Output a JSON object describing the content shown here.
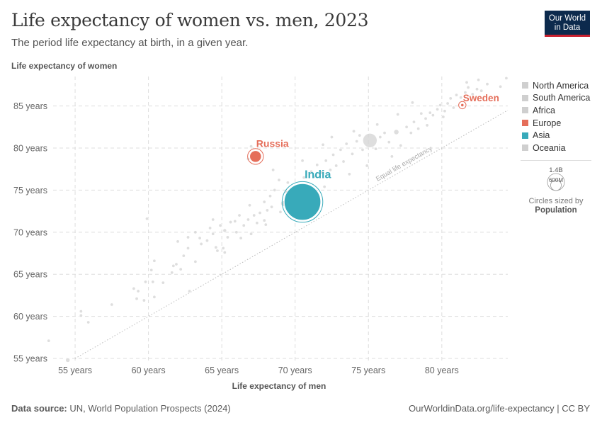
{
  "header": {
    "title": "Life expectancy of women vs. men, 2023",
    "subtitle": "The period life expectancy at birth, in a given year.",
    "logo_line1": "Our World",
    "logo_line2": "in Data"
  },
  "footer": {
    "source_label": "Data source:",
    "source_text": "UN, World Population Prospects (2024)",
    "url": "OurWorldinData.org/life-expectancy | CC BY"
  },
  "legend": {
    "items": [
      {
        "label": "North America",
        "color": "#cfcfcf"
      },
      {
        "label": "South America",
        "color": "#cfcfcf"
      },
      {
        "label": "Africa",
        "color": "#cfcfcf"
      },
      {
        "label": "Europe",
        "color": "#e56e5a"
      },
      {
        "label": "Asia",
        "color": "#38aaba"
      },
      {
        "label": "Oceania",
        "color": "#cfcfcf"
      }
    ],
    "size_key_max": "1.4B",
    "size_key_min": "600M",
    "size_caption": "Circles sized by",
    "size_variable": "Population"
  },
  "chart_data": {
    "type": "scatter",
    "ylabel": "Life expectancy of women",
    "xlabel": "Life expectancy of men",
    "xlim": [
      53.5,
      84.5
    ],
    "ylim": [
      54.5,
      88.5
    ],
    "x_ticks": [
      55,
      60,
      65,
      70,
      75,
      80
    ],
    "y_ticks": [
      55,
      60,
      65,
      70,
      75,
      80,
      85
    ],
    "x_tick_labels": [
      "55 years",
      "60 years",
      "65 years",
      "70 years",
      "75 years",
      "80 years"
    ],
    "y_tick_labels": [
      "55 years",
      "60 years",
      "65 years",
      "70 years",
      "75 years",
      "80 years",
      "85 years"
    ],
    "reference_line_label": "Equal life expectancy",
    "grid": true,
    "highlighted": [
      {
        "name": "India",
        "x": 70.5,
        "y": 73.6,
        "population_m": 1430,
        "color": "#38aaba"
      },
      {
        "name": "Russia",
        "x": 67.3,
        "y": 79.0,
        "population_m": 144,
        "color": "#e56e5a"
      },
      {
        "name": "Sweden",
        "x": 81.4,
        "y": 85.1,
        "population_m": 10.5,
        "color": "#e56e5a"
      }
    ],
    "points": [
      [
        54.5,
        54.8,
        20
      ],
      [
        53.2,
        57.1,
        2
      ],
      [
        55.4,
        60.6,
        2
      ],
      [
        55.4,
        60.1,
        2
      ],
      [
        55.9,
        59.3,
        2
      ],
      [
        57.5,
        61.4,
        2
      ],
      [
        59.0,
        63.3,
        3
      ],
      [
        59.3,
        63.0,
        3
      ],
      [
        59.8,
        64.1,
        10
      ],
      [
        60.3,
        64.1,
        4
      ],
      [
        60.2,
        65.5,
        2
      ],
      [
        60.4,
        66.6,
        2
      ],
      [
        59.2,
        62.1,
        2
      ],
      [
        59.7,
        61.9,
        3
      ],
      [
        60.4,
        62.3,
        2
      ],
      [
        61.0,
        64.0,
        2
      ],
      [
        59.9,
        71.6,
        1
      ],
      [
        61.6,
        65.2,
        2
      ],
      [
        61.7,
        66.0,
        4
      ],
      [
        61.9,
        66.2,
        3
      ],
      [
        62.2,
        65.6,
        3
      ],
      [
        62.4,
        67.2,
        2
      ],
      [
        62.7,
        69.4,
        2
      ],
      [
        62.7,
        68.1,
        2
      ],
      [
        63.2,
        70.0,
        3
      ],
      [
        63.6,
        68.6,
        2
      ],
      [
        63.2,
        66.5,
        2
      ],
      [
        62.8,
        63.0,
        1
      ],
      [
        64.0,
        69.0,
        3
      ],
      [
        64.2,
        70.5,
        5
      ],
      [
        64.4,
        69.8,
        8
      ],
      [
        64.6,
        68.2,
        2
      ],
      [
        64.7,
        67.8,
        2
      ],
      [
        64.4,
        71.5,
        2
      ],
      [
        64.9,
        70.8,
        6
      ],
      [
        65.4,
        69.4,
        2
      ],
      [
        65.6,
        71.2,
        3
      ],
      [
        65.2,
        67.6,
        2
      ],
      [
        65.1,
        68.1,
        2
      ],
      [
        65.2,
        70.2,
        14
      ],
      [
        65.9,
        71.3,
        2
      ],
      [
        66.2,
        72.0,
        2
      ],
      [
        66.5,
        70.8,
        2
      ],
      [
        66.8,
        71.5,
        2
      ],
      [
        66.9,
        73.2,
        3
      ],
      [
        67.2,
        72.0,
        2
      ],
      [
        67.4,
        71.1,
        2
      ],
      [
        67.6,
        72.3,
        3
      ],
      [
        67.9,
        73.6,
        2
      ],
      [
        67.9,
        71.4,
        2
      ],
      [
        68.1,
        72.6,
        3
      ],
      [
        68.3,
        74.3,
        2
      ],
      [
        68.4,
        73.0,
        2
      ],
      [
        68.6,
        75.0,
        2
      ],
      [
        68.9,
        76.2,
        3
      ],
      [
        69.2,
        73.4,
        30
      ],
      [
        69.4,
        74.8,
        2
      ],
      [
        69.5,
        75.9,
        3
      ],
      [
        69.8,
        74.2,
        4
      ],
      [
        70.1,
        72.8,
        3
      ],
      [
        70.3,
        75.5,
        3
      ],
      [
        70.6,
        76.5,
        3
      ],
      [
        70.8,
        75.1,
        2
      ],
      [
        71.1,
        77.2,
        3
      ],
      [
        71.3,
        76.6,
        4
      ],
      [
        71.5,
        78.0,
        2
      ],
      [
        71.8,
        77.1,
        2
      ],
      [
        72.1,
        78.5,
        2
      ],
      [
        72.4,
        77.4,
        6
      ],
      [
        72.6,
        79.2,
        2
      ],
      [
        72.8,
        77.9,
        3
      ],
      [
        73.1,
        79.8,
        2
      ],
      [
        73.3,
        78.4,
        2
      ],
      [
        73.5,
        80.5,
        2
      ],
      [
        73.9,
        79.3,
        3
      ],
      [
        74.2,
        80.8,
        2
      ],
      [
        74.4,
        81.5,
        4
      ],
      [
        74.6,
        79.8,
        3
      ],
      [
        75.1,
        80.9,
        215
      ],
      [
        75.5,
        79.9,
        3
      ],
      [
        75.8,
        81.3,
        2
      ],
      [
        76.1,
        81.8,
        2
      ],
      [
        76.4,
        80.7,
        3
      ],
      [
        76.9,
        81.9,
        28
      ],
      [
        77.2,
        80.3,
        2
      ],
      [
        77.6,
        82.5,
        2
      ],
      [
        77.9,
        81.8,
        3
      ],
      [
        78.1,
        83.1,
        2
      ],
      [
        78.4,
        82.3,
        2
      ],
      [
        78.6,
        84.1,
        2
      ],
      [
        78.9,
        83.5,
        3
      ],
      [
        79.2,
        84.2,
        2
      ],
      [
        79.4,
        83.9,
        3
      ],
      [
        79.7,
        84.6,
        2
      ],
      [
        79.9,
        85.1,
        2
      ],
      [
        80.2,
        84.4,
        4
      ],
      [
        80.4,
        85.3,
        2
      ],
      [
        80.6,
        85.9,
        6
      ],
      [
        80.8,
        84.8,
        2
      ],
      [
        81.0,
        86.3,
        4
      ],
      [
        81.3,
        86.0,
        3
      ],
      [
        81.6,
        86.6,
        2
      ],
      [
        81.8,
        87.2,
        5
      ],
      [
        82.1,
        86.4,
        2
      ],
      [
        82.4,
        87.0,
        2
      ],
      [
        82.7,
        86.8,
        2
      ],
      [
        81.7,
        87.8,
        4
      ],
      [
        82.5,
        88.1,
        2
      ],
      [
        83.1,
        87.6,
        2
      ],
      [
        84.0,
        87.3,
        2
      ],
      [
        84.4,
        88.3,
        1
      ],
      [
        80.1,
        83.7,
        3
      ],
      [
        79.0,
        82.7,
        2
      ],
      [
        76.6,
        79.0,
        2
      ],
      [
        74.9,
        77.9,
        2
      ],
      [
        73.7,
        76.9,
        2
      ],
      [
        72.0,
        75.4,
        3
      ],
      [
        70.0,
        74.9,
        2
      ],
      [
        69.0,
        72.4,
        2
      ],
      [
        68.0,
        70.9,
        2
      ],
      [
        67.0,
        69.8,
        2
      ],
      [
        66.3,
        69.3,
        2
      ],
      [
        66.0,
        70.0,
        2
      ],
      [
        63.5,
        69.3,
        3
      ],
      [
        62.0,
        68.9,
        2
      ],
      [
        66.8,
        78.7,
        2
      ],
      [
        67.0,
        80.2,
        3
      ],
      [
        68.5,
        77.4,
        2
      ],
      [
        70.5,
        78.5,
        2
      ],
      [
        71.9,
        80.4,
        2
      ],
      [
        72.5,
        81.3,
        2
      ],
      [
        74.0,
        82.0,
        2
      ],
      [
        75.6,
        82.8,
        2
      ],
      [
        77.0,
        84.0,
        2
      ],
      [
        78.0,
        85.4,
        2
      ]
    ]
  }
}
